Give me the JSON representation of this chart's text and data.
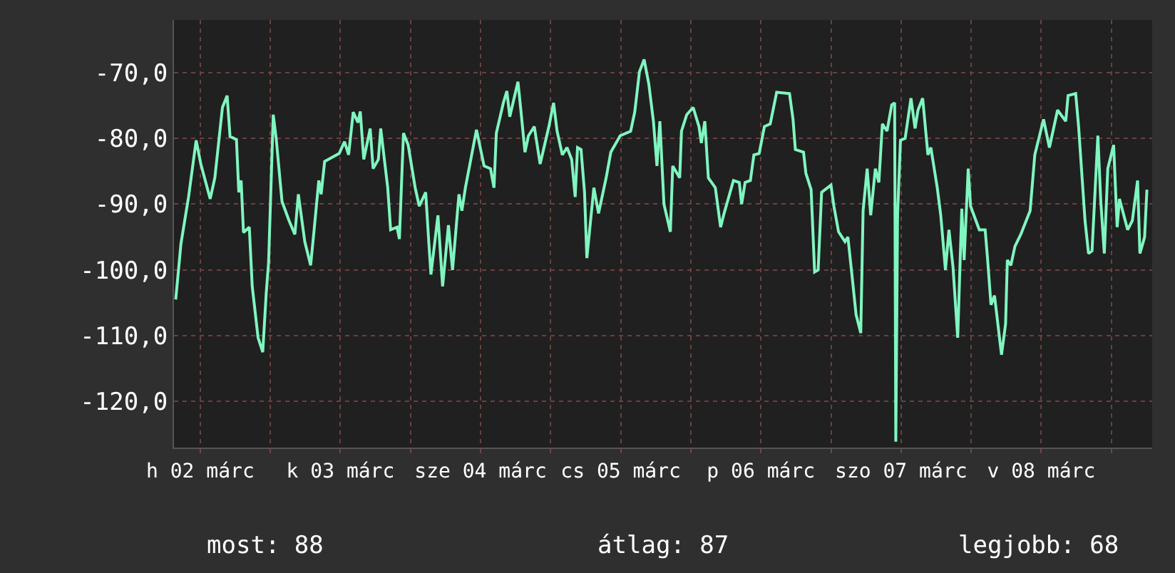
{
  "chart_data": {
    "type": "line",
    "x": [
      "--03-02T07:48",
      "--03-02T08:42",
      "--03-02T10:00",
      "--03-02T11:18",
      "--03-02T12:06",
      "--03-02T13:42",
      "--03-02T14:30",
      "--03-02T15:48",
      "--03-02T16:36",
      "--03-02T17:06",
      "--03-02T18:12",
      "--03-02T18:36",
      "--03-02T19:00",
      "--03-02T19:24",
      "--03-02T20:24",
      "--03-02T20:54",
      "--03-02T21:54",
      "--03-02T22:42",
      "--03-02T23:18",
      "--03-02T23:42",
      "--03-03T00:30",
      "--03-03T01:00",
      "--03-03T02:00",
      "--03-03T03:12",
      "--03-03T04:12",
      "--03-03T04:48",
      "--03-03T05:54",
      "--03-03T06:54",
      "--03-03T07:30",
      "--03-03T08:18",
      "--03-03T08:42",
      "--03-03T09:18",
      "--03-03T11:48",
      "--03-03T12:42",
      "--03-03T13:24",
      "--03-03T14:12",
      "--03-03T15:00",
      "--03-03T15:24",
      "--03-03T16:00",
      "--03-03T17:06",
      "--03-03T17:36",
      "--03-03T18:30",
      "--03-03T18:54",
      "--03-03T20:06",
      "--03-03T20:36",
      "--03-03T21:42",
      "--03-03T22:06",
      "--03-03T22:48",
      "--03-03T23:36",
      "--03-04T00:48",
      "--03-04T01:30",
      "--03-04T02:36",
      "--03-04T03:06",
      "--03-04T03:30",
      "--03-04T04:42",
      "--03-04T05:30",
      "--03-04T06:30",
      "--03-04T07:12",
      "--03-04T08:18",
      "--03-04T08:48",
      "--03-04T09:24",
      "--03-04T11:18",
      "--03-04T12:36",
      "--03-04T13:42",
      "--03-04T14:18",
      "--03-04T14:42",
      "--03-04T15:54",
      "--03-04T16:30",
      "--03-04T17:00",
      "--03-04T18:24",
      "--03-04T18:54",
      "--03-04T19:36",
      "--03-04T20:12",
      "--03-04T21:12",
      "--03-04T22:12",
      "--03-04T23:42",
      "--03-05T00:30",
      "--03-05T01:06",
      "--03-05T02:00",
      "--03-05T02:48",
      "--03-05T03:36",
      "--03-05T04:12",
      "--03-05T04:36",
      "--03-05T05:12",
      "--03-05T05:48",
      "--03-05T06:12",
      "--03-05T07:24",
      "--03-05T08:12",
      "--03-05T09:30",
      "--03-05T10:18",
      "--03-05T11:54",
      "--03-05T13:42",
      "--03-05T14:24",
      "--03-05T15:12",
      "--03-05T16:00",
      "--03-05T16:48",
      "--03-05T17:36",
      "--03-05T18:12",
      "--03-05T18:42",
      "--03-05T19:24",
      "--03-05T20:30",
      "--03-05T20:54",
      "--03-05T22:06",
      "--03-05T22:24",
      "--03-05T23:18",
      "--03-06T00:24",
      "--03-06T01:24",
      "--03-06T01:48",
      "--03-06T02:24",
      "--03-06T03:00",
      "--03-06T04:12",
      "--03-06T05:06",
      "--03-06T05:42",
      "--03-06T07:18",
      "--03-06T08:18",
      "--03-06T08:42",
      "--03-06T09:18",
      "--03-06T10:12",
      "--03-06T10:48",
      "--03-06T11:42",
      "--03-06T12:36",
      "--03-06T13:36",
      "--03-06T14:42",
      "--03-06T16:54",
      "--03-06T17:30",
      "--03-06T17:54",
      "--03-06T19:18",
      "--03-06T19:42",
      "--03-06T20:36",
      "--03-06T21:12",
      "--03-06T21:48",
      "--03-06T22:24",
      "--03-07T00:00",
      "--03-07T00:30",
      "--03-07T01:18",
      "--03-07T02:24",
      "--03-07T02:54",
      "--03-07T03:30",
      "--03-07T04:18",
      "--03-07T05:06",
      "--03-07T05:30",
      "--03-07T06:12",
      "--03-07T06:48",
      "--03-07T07:36",
      "--03-07T08:12",
      "--03-07T08:48",
      "--03-07T09:36",
      "--03-07T10:24",
      "--03-07T10:54",
      "--03-07T11:06",
      "--03-07T11:24",
      "--03-07T11:54",
      "--03-07T12:42",
      "--03-07T13:42",
      "--03-07T14:24",
      "--03-07T14:54",
      "--03-07T15:42",
      "--03-07T16:36",
      "--03-07T17:06",
      "--03-07T18:12",
      "--03-07T18:48",
      "--03-07T19:36",
      "--03-07T20:12",
      "--03-07T20:54",
      "--03-07T21:42",
      "--03-07T22:24",
      "--03-07T22:48",
      "--03-07T23:30",
      "--03-07T23:54",
      "--03-08T01:24",
      "--03-08T02:24",
      "--03-08T02:48",
      "--03-08T03:24",
      "--03-08T04:00",
      "--03-08T05:12",
      "--03-08T05:54",
      "--03-08T06:12",
      "--03-08T06:48",
      "--03-08T07:30",
      "--03-08T08:30",
      "--03-08T10:06",
      "--03-08T10:54",
      "--03-08T12:24",
      "--03-08T13:24",
      "--03-08T14:48",
      "--03-08T16:12",
      "--03-08T16:36",
      "--03-08T17:54",
      "--03-08T18:24",
      "--03-08T19:30",
      "--03-08T20:06",
      "--03-08T20:42",
      "--03-08T21:42",
      "--03-08T22:12",
      "--03-08T22:48",
      "--03-08T23:24",
      "--03-09T00:24",
      "--03-09T01:00",
      "--03-09T01:24",
      "--03-09T02:48",
      "--03-09T03:36",
      "--03-09T04:30",
      "--03-09T04:54",
      "--03-09T05:42",
      "--03-09T06:06"
    ],
    "series": [
      {
        "color": "#80f5c0",
        "values": [
          -104.5,
          -96.0,
          -88.9,
          -80.3,
          -83.9,
          -89.2,
          -86.0,
          -75.3,
          -73.5,
          -79.7,
          -80.2,
          -88.2,
          -86.4,
          -94.3,
          -93.5,
          -102.5,
          -110.3,
          -112.5,
          -103.5,
          -98.9,
          -76.4,
          -80.0,
          -89.6,
          -92.5,
          -94.6,
          -88.5,
          -95.7,
          -99.3,
          -93.9,
          -86.4,
          -88.5,
          -83.5,
          -82.3,
          -80.5,
          -82.5,
          -76.0,
          -77.6,
          -75.9,
          -83.2,
          -78.5,
          -84.6,
          -83.2,
          -78.5,
          -87.5,
          -93.9,
          -93.5,
          -95.3,
          -79.2,
          -81.0,
          -87.5,
          -90.3,
          -88.2,
          -95.3,
          -100.7,
          -91.7,
          -102.5,
          -93.2,
          -100.0,
          -88.5,
          -91.0,
          -87.5,
          -78.7,
          -84.2,
          -84.6,
          -87.5,
          -79.2,
          -74.6,
          -72.8,
          -76.7,
          -71.4,
          -75.7,
          -82.1,
          -79.6,
          -78.2,
          -83.9,
          -78.2,
          -74.6,
          -78.9,
          -82.5,
          -81.4,
          -83.2,
          -88.9,
          -81.4,
          -81.7,
          -88.2,
          -98.2,
          -87.5,
          -91.4,
          -86.0,
          -82.1,
          -79.6,
          -78.9,
          -76.0,
          -69.9,
          -68.0,
          -71.7,
          -77.4,
          -84.2,
          -77.4,
          -90.0,
          -94.2,
          -84.2,
          -86.0,
          -78.9,
          -76.4,
          -75.3,
          -78.2,
          -80.7,
          -77.4,
          -86.0,
          -87.5,
          -93.5,
          -91.4,
          -86.4,
          -86.7,
          -90.0,
          -86.7,
          -86.4,
          -82.5,
          -82.3,
          -78.2,
          -77.8,
          -73.0,
          -73.2,
          -77.1,
          -81.7,
          -82.1,
          -85.3,
          -87.8,
          -100.3,
          -100.0,
          -88.2,
          -87.1,
          -90.3,
          -94.2,
          -95.7,
          -95.0,
          -100.0,
          -106.8,
          -109.6,
          -91.0,
          -84.6,
          -91.7,
          -84.6,
          -86.7,
          -77.8,
          -78.9,
          -74.9,
          -74.6,
          -126.1,
          -91.7,
          -80.3,
          -80.0,
          -73.9,
          -78.5,
          -75.7,
          -73.9,
          -82.5,
          -81.4,
          -87.5,
          -91.7,
          -100.0,
          -93.9,
          -99.6,
          -110.3,
          -90.7,
          -98.5,
          -84.6,
          -90.3,
          -93.9,
          -93.9,
          -98.2,
          -105.3,
          -103.9,
          -112.9,
          -108.2,
          -98.5,
          -99.3,
          -96.4,
          -94.6,
          -91.0,
          -82.5,
          -77.1,
          -81.4,
          -75.7,
          -77.4,
          -73.5,
          -73.2,
          -78.2,
          -92.5,
          -97.5,
          -97.1,
          -79.6,
          -89.6,
          -97.5,
          -84.6,
          -81.0,
          -93.5,
          -89.2,
          -93.9,
          -92.5,
          -86.4,
          -97.5,
          -95.0,
          -87.8
        ]
      }
    ],
    "xlim": [
      "--03-02T07:30",
      "--03-09T07:00"
    ],
    "xticks": [
      {
        "value": "--03-02T12:00",
        "label": "h 02 márc"
      },
      {
        "value": "--03-03",
        "label": null
      },
      {
        "value": "--03-03T12:00",
        "label": "k 03 márc"
      },
      {
        "value": "--03-04",
        "label": null
      },
      {
        "value": "--03-04T12:00",
        "label": "sze 04 márc"
      },
      {
        "value": "--03-05",
        "label": null
      },
      {
        "value": "--03-05T12:00",
        "label": "cs 05 márc"
      },
      {
        "value": "--03-06",
        "label": null
      },
      {
        "value": "--03-06T12:00",
        "label": "p 06 márc"
      },
      {
        "value": "--03-07",
        "label": null
      },
      {
        "value": "--03-07T12:00",
        "label": "szo 07 márc"
      },
      {
        "value": "--03-08",
        "label": null
      },
      {
        "value": "--03-08T12:00",
        "label": "v 08 márc"
      },
      {
        "value": "--03-09",
        "label": null
      }
    ],
    "ylim": [
      -127,
      -62
    ],
    "yticks": [
      {
        "value": -70,
        "label": "-70,0"
      },
      {
        "value": -80,
        "label": "-80,0"
      },
      {
        "value": -90,
        "label": "-90,0"
      },
      {
        "value": -100,
        "label": "-100,0"
      },
      {
        "value": -110,
        "label": "-110,0"
      },
      {
        "value": -120,
        "label": "-120,0"
      }
    ],
    "grid": true,
    "marker": "none",
    "line_style": "solid",
    "annotations": [
      "most: 88",
      "átlag: 87",
      "legjobb: 68"
    ]
  }
}
